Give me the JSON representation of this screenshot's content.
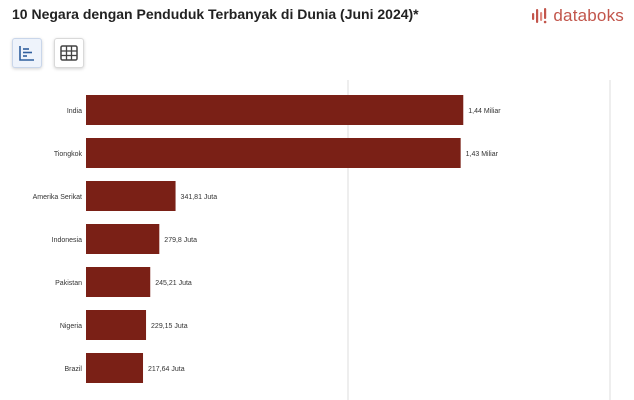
{
  "header": {
    "title": "10 Negara dengan Penduduk Terbanyak di Dunia (Juni 2024)*"
  },
  "brand": {
    "name": "databoks",
    "color": "#c2554b"
  },
  "toolbar": {
    "buttons": [
      {
        "icon": "bar-chart-icon",
        "active": true
      },
      {
        "icon": "table-grid-icon",
        "active": false
      }
    ]
  },
  "colors": {
    "bar": "#7a2016",
    "grid": "#dcdcdc",
    "label": "#333333"
  },
  "chart_data": {
    "type": "bar",
    "orientation": "horizontal",
    "categories": [
      "India",
      "Tiongkok",
      "Amerika Serikat",
      "Indonesia",
      "Pakistan",
      "Nigeria",
      "Brazil"
    ],
    "values": [
      1440,
      1430,
      341.81,
      279.8,
      245.21,
      229.15,
      217.64
    ],
    "unit": "juta",
    "value_labels": [
      "1,44 Miliar",
      "1,43 Miliar",
      "341,81 Juta",
      "279,8 Juta",
      "245,21 Juta",
      "229,15 Juta",
      "217,64 Juta"
    ],
    "xlim": [
      0,
      2000
    ],
    "grid": true
  }
}
